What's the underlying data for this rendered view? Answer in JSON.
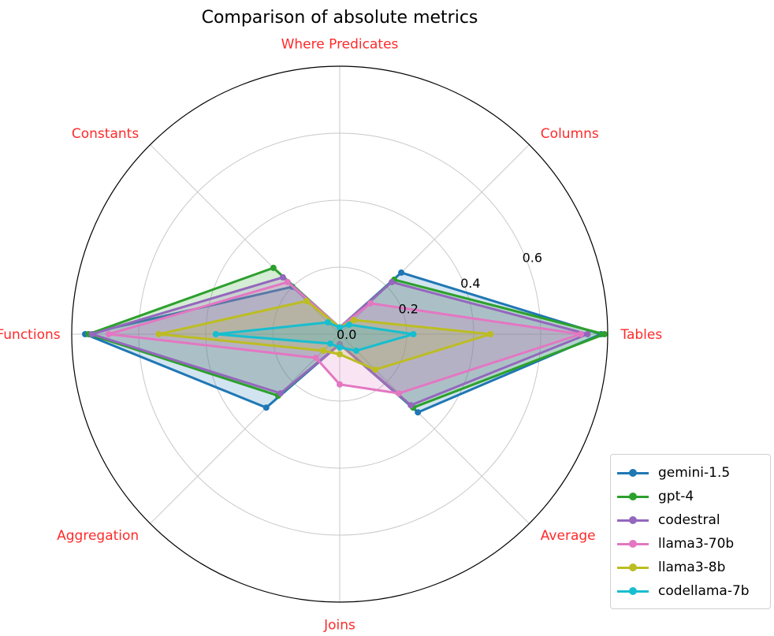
{
  "chart_data": {
    "type": "radar",
    "title": "Comparison of absolute metrics",
    "axes": [
      "Tables",
      "Columns",
      "Where Predicates",
      "Constants",
      "Functions",
      "Aggregation",
      "Joins",
      "Average"
    ],
    "rlim": [
      0,
      0.8
    ],
    "rticks": [
      "0.0",
      "0.2",
      "0.4",
      "0.6"
    ],
    "grid": true,
    "legend_position": "bottom-right",
    "series": [
      {
        "name": "gemini-1.5",
        "color": "#1f77b4",
        "values": [
          0.78,
          0.26,
          0.02,
          0.2,
          0.76,
          0.31,
          0.03,
          0.33
        ]
      },
      {
        "name": "gpt-4",
        "color": "#2ca02c",
        "values": [
          0.79,
          0.23,
          0.02,
          0.28,
          0.75,
          0.26,
          0.03,
          0.31
        ]
      },
      {
        "name": "codestral",
        "color": "#9467bd",
        "values": [
          0.74,
          0.22,
          0.02,
          0.24,
          0.74,
          0.25,
          0.03,
          0.3
        ]
      },
      {
        "name": "llama3-70b",
        "color": "#e377c2",
        "values": [
          0.72,
          0.13,
          0.02,
          0.22,
          0.69,
          0.1,
          0.15,
          0.25
        ]
      },
      {
        "name": "llama3-8b",
        "color": "#bcbd22",
        "values": [
          0.45,
          0.06,
          0.02,
          0.14,
          0.54,
          0.07,
          0.06,
          0.15
        ]
      },
      {
        "name": "codellama-7b",
        "color": "#17becf",
        "values": [
          0.22,
          0.04,
          0.02,
          0.05,
          0.37,
          0.04,
          0.04,
          0.07
        ]
      }
    ]
  }
}
